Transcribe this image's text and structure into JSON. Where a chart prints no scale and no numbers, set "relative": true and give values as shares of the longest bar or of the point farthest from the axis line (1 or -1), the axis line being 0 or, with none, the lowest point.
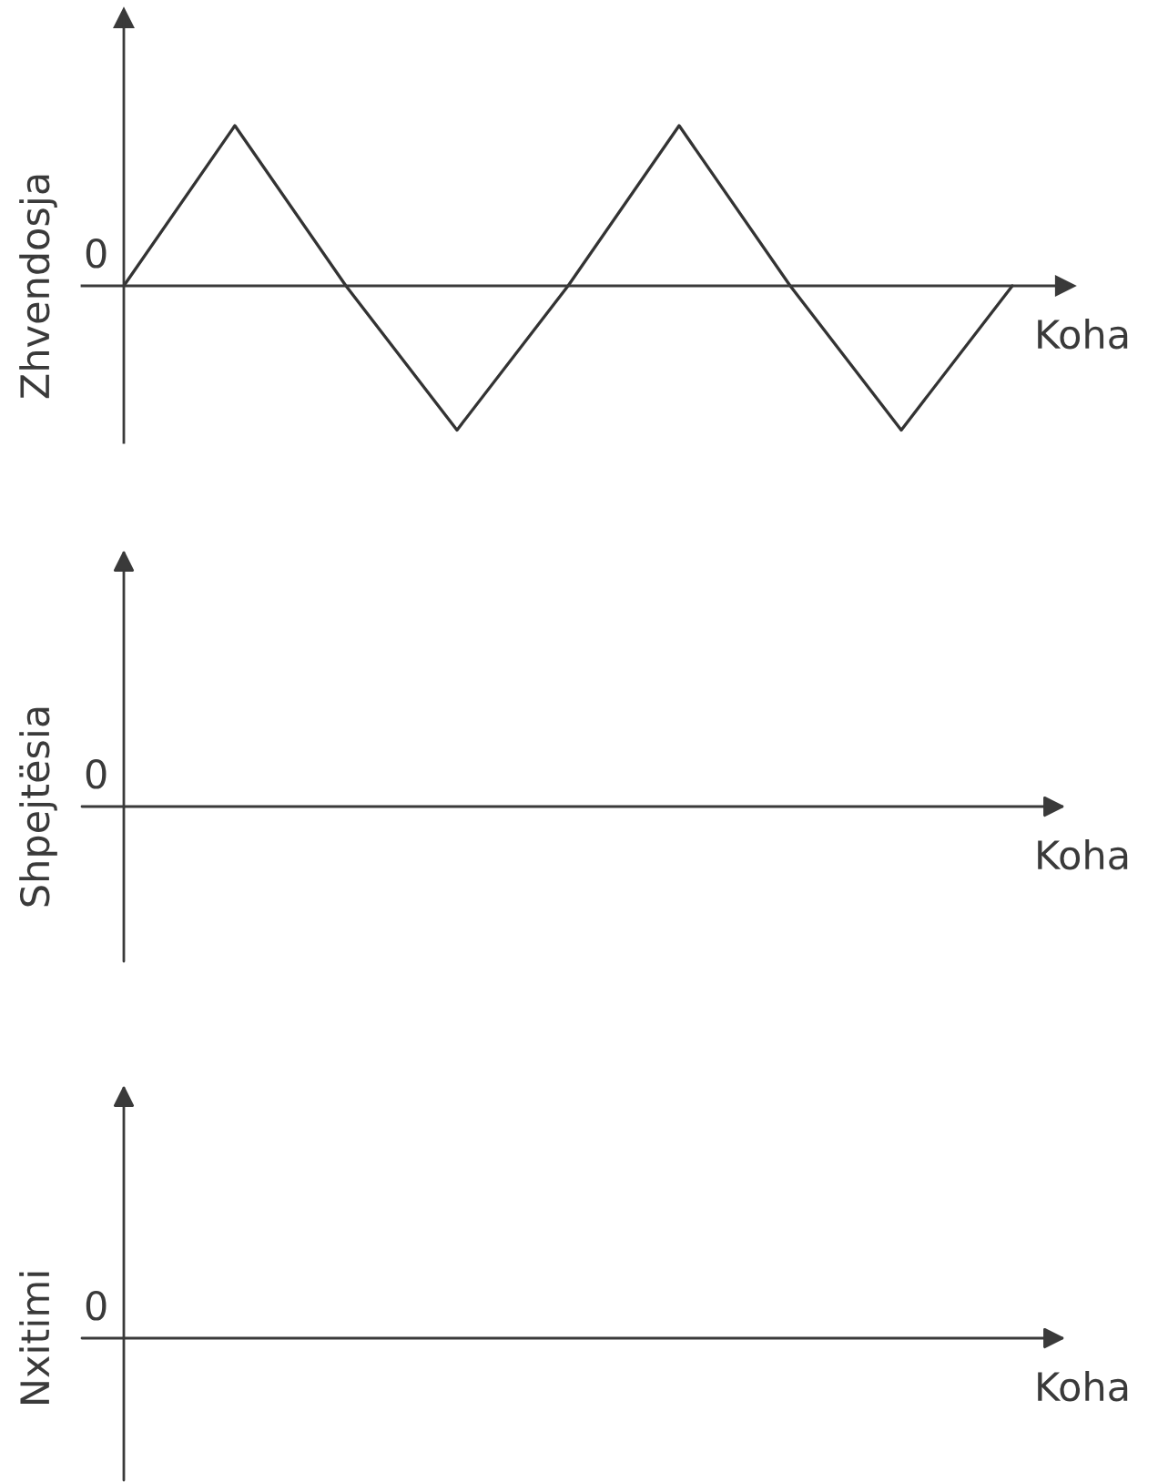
{
  "chart_data": [
    {
      "type": "line",
      "relative": true,
      "categories": [
        null,
        null,
        null,
        null,
        null,
        null,
        null,
        null,
        null
      ],
      "values": [
        0,
        1,
        0,
        -0.9,
        0,
        1,
        0,
        -0.9,
        0
      ],
      "color": "#333333",
      "xlabel": "Koha",
      "ylabel": "Zhvendosja",
      "annotations": [
        "0"
      ]
    },
    {
      "type": "other",
      "xlabel": "Koha",
      "ylabel": "Shpejtësia",
      "annotations": [
        "0"
      ]
    },
    {
      "type": "other",
      "xlabel": "Koha",
      "ylabel": "Nxitimi",
      "annotations": [
        "0"
      ]
    }
  ]
}
